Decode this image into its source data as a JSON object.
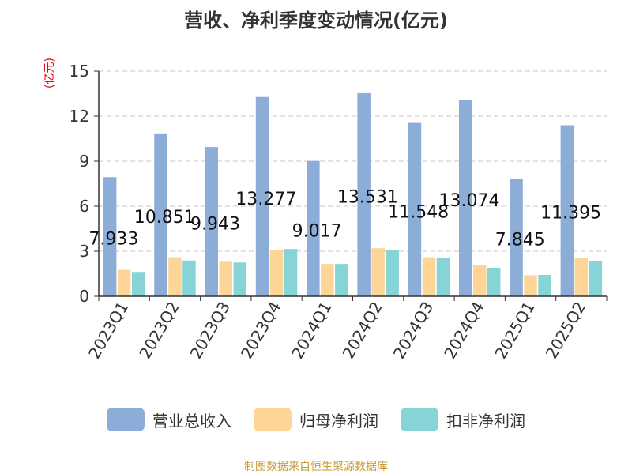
{
  "chart_data": {
    "type": "bar",
    "title": "营收、净利季度变动情况(亿元)",
    "ylabel": "(亿元)",
    "categories": [
      "2023Q1",
      "2023Q2",
      "2023Q3",
      "2023Q4",
      "2024Q1",
      "2024Q2",
      "2024Q3",
      "2024Q4",
      "2025Q1",
      "2025Q2"
    ],
    "series": [
      {
        "name": "营业总收入",
        "color": "#8dadd9",
        "values": [
          7.933,
          10.851,
          9.943,
          13.277,
          9.017,
          13.531,
          11.548,
          13.074,
          7.845,
          11.395
        ]
      },
      {
        "name": "归母净利润",
        "color": "#fcd597",
        "values": [
          1.75,
          2.6,
          2.3,
          3.1,
          2.15,
          3.2,
          2.6,
          2.1,
          1.4,
          2.55
        ]
      },
      {
        "name": "扣非净利润",
        "color": "#86d4d6",
        "values": [
          1.62,
          2.38,
          2.25,
          3.15,
          2.15,
          3.1,
          2.58,
          1.9,
          1.42,
          2.32
        ]
      }
    ],
    "data_labels": [
      "7.933",
      "10.851",
      "9.943",
      "13.277",
      "9.017",
      "13.531",
      "11.548",
      "13.074",
      "7.845",
      "11.395"
    ],
    "ylim": [
      0,
      15
    ],
    "yticks": [
      0,
      3,
      6,
      9,
      12,
      15
    ],
    "grid": true,
    "legend_position": "bottom"
  },
  "source": "制图数据来自恒生聚源数据库"
}
